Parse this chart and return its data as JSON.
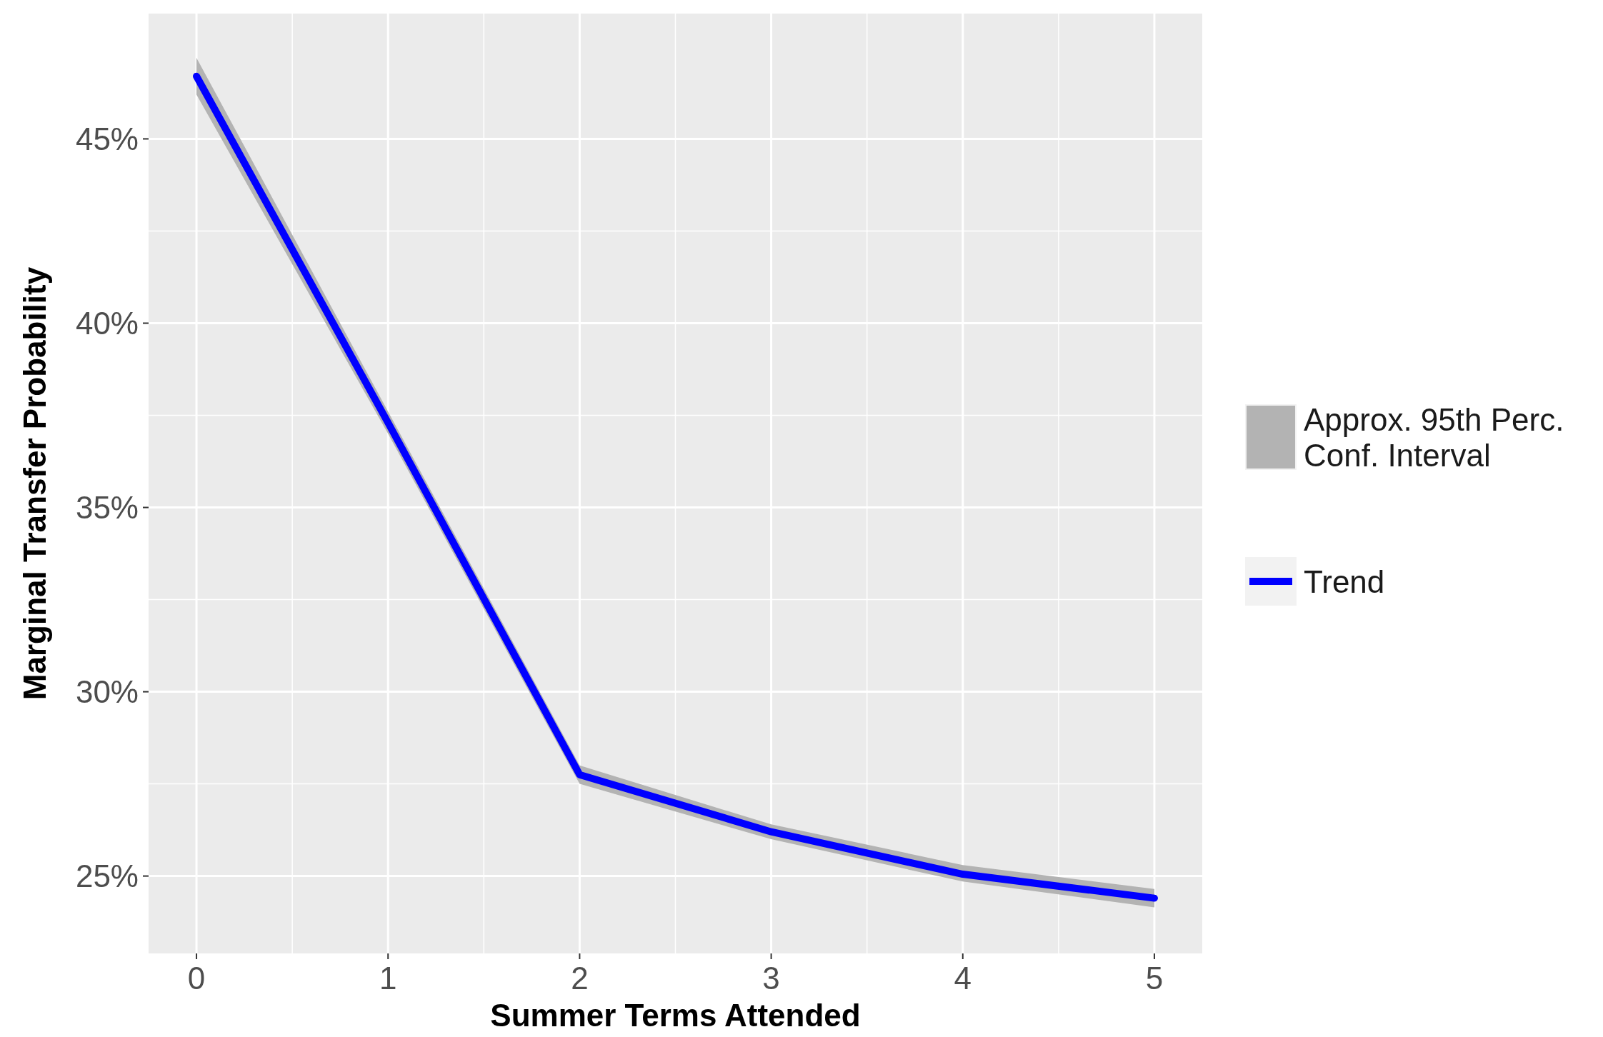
{
  "chart_data": {
    "type": "line",
    "xlabel": "Summer Terms Attended",
    "ylabel": "Marginal Transfer Probability",
    "x": [
      0,
      1,
      2,
      3,
      4,
      5
    ],
    "series": [
      {
        "name": "Trend",
        "color": "#0000ff",
        "values": [
          46.7,
          37.3,
          27.75,
          26.2,
          25.05,
          24.4
        ],
        "lower": [
          46.2,
          37.0,
          27.5,
          26.0,
          24.85,
          24.15
        ],
        "upper": [
          47.2,
          37.6,
          28.0,
          26.4,
          25.3,
          24.65
        ]
      }
    ],
    "annotations": [
      "Approx. 95th Perc.\nConf. Interval"
    ],
    "xlim": [
      -0.25,
      5.25
    ],
    "xticks": [
      0,
      1,
      2,
      3,
      4,
      5
    ],
    "ylim": [
      22.9,
      48.4
    ],
    "yticks": [
      {
        "value": 25,
        "label": "25%"
      },
      {
        "value": 30,
        "label": "30%"
      },
      {
        "value": 35,
        "label": "35%"
      },
      {
        "value": 40,
        "label": "40%"
      },
      {
        "value": 45,
        "label": "45%"
      }
    ],
    "grid": true,
    "legend": "right",
    "line_style": "solid",
    "marker": "none"
  }
}
